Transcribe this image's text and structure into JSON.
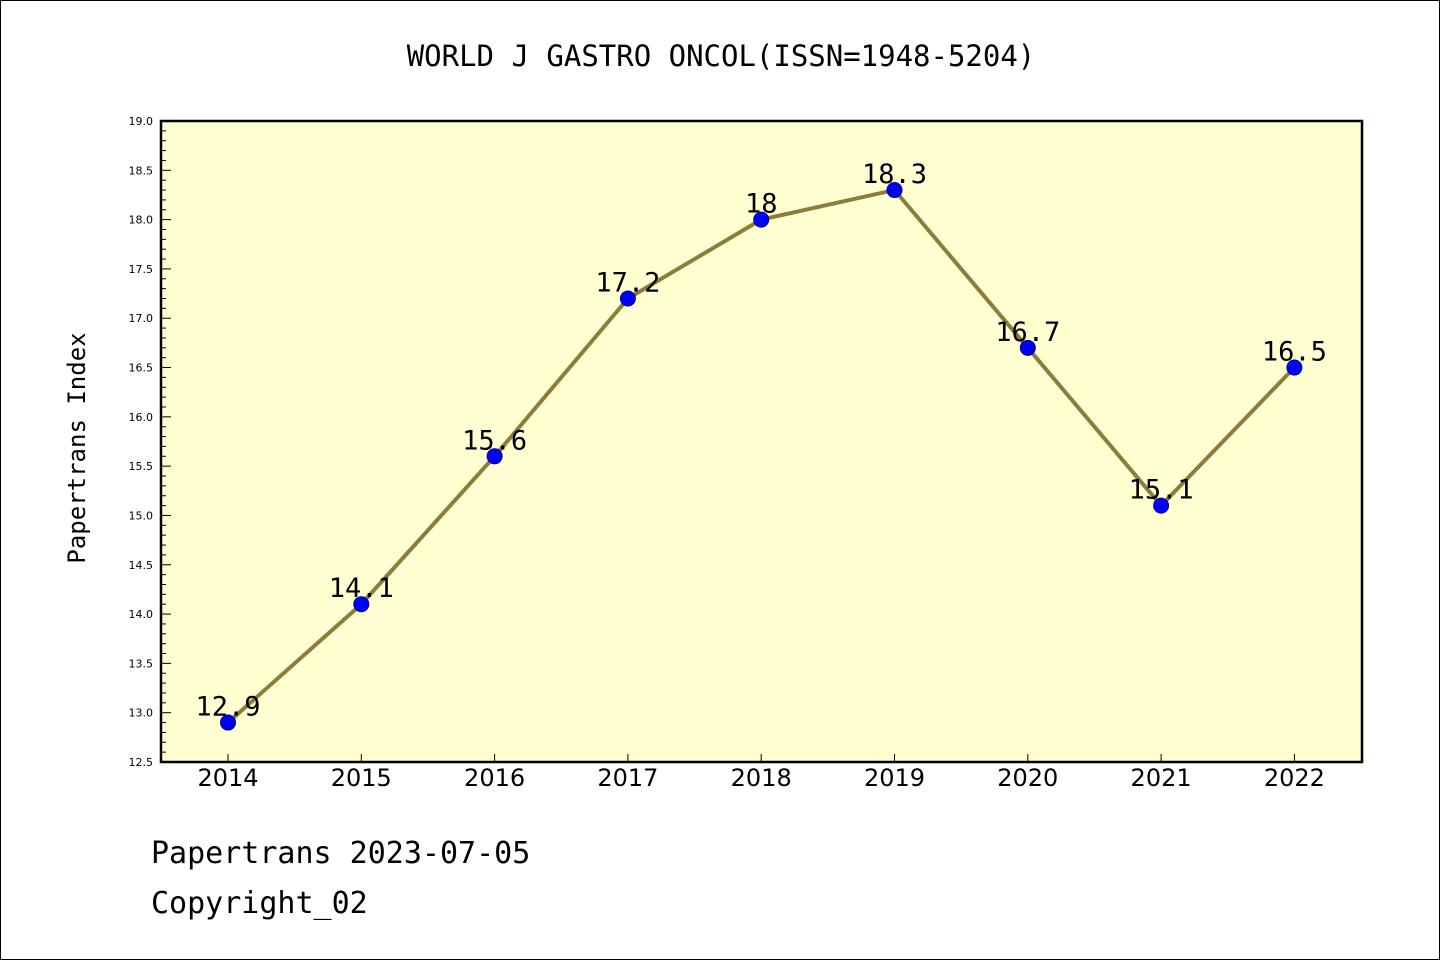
{
  "chart_data": {
    "type": "line",
    "title": "WORLD J GASTRO ONCOL(ISSN=1948-5204)",
    "xlabel": "",
    "ylabel": "Papertrans Index",
    "categories": [
      "2014",
      "2015",
      "2016",
      "2017",
      "2018",
      "2019",
      "2020",
      "2021",
      "2022"
    ],
    "series": [
      {
        "values": [
          12.9,
          14.1,
          15.6,
          17.2,
          18.0,
          18.3,
          16.7,
          15.1,
          16.5
        ],
        "labels": [
          "12.9",
          "14.1",
          "15.6",
          "17.2",
          "18",
          "18.3",
          "16.7",
          "15.1",
          "16.5"
        ]
      }
    ],
    "ylim": [
      12.5,
      19.0
    ],
    "yticks": [
      "12.5",
      "13.0",
      "13.5",
      "14.0",
      "14.5",
      "15.0",
      "15.5",
      "16.0",
      "16.5",
      "17.0",
      "17.5",
      "18.0",
      "18.5",
      "19.0"
    ],
    "grid": false,
    "legend": "none",
    "colors": {
      "plot_background": "#ffffd2",
      "line": "#8b7d3a",
      "marker": "#0000ff",
      "marker_edge": "#000080"
    }
  },
  "footer": {
    "date_text": "Papertrans 2023-07-05",
    "copyright_text": "Copyright_02"
  }
}
